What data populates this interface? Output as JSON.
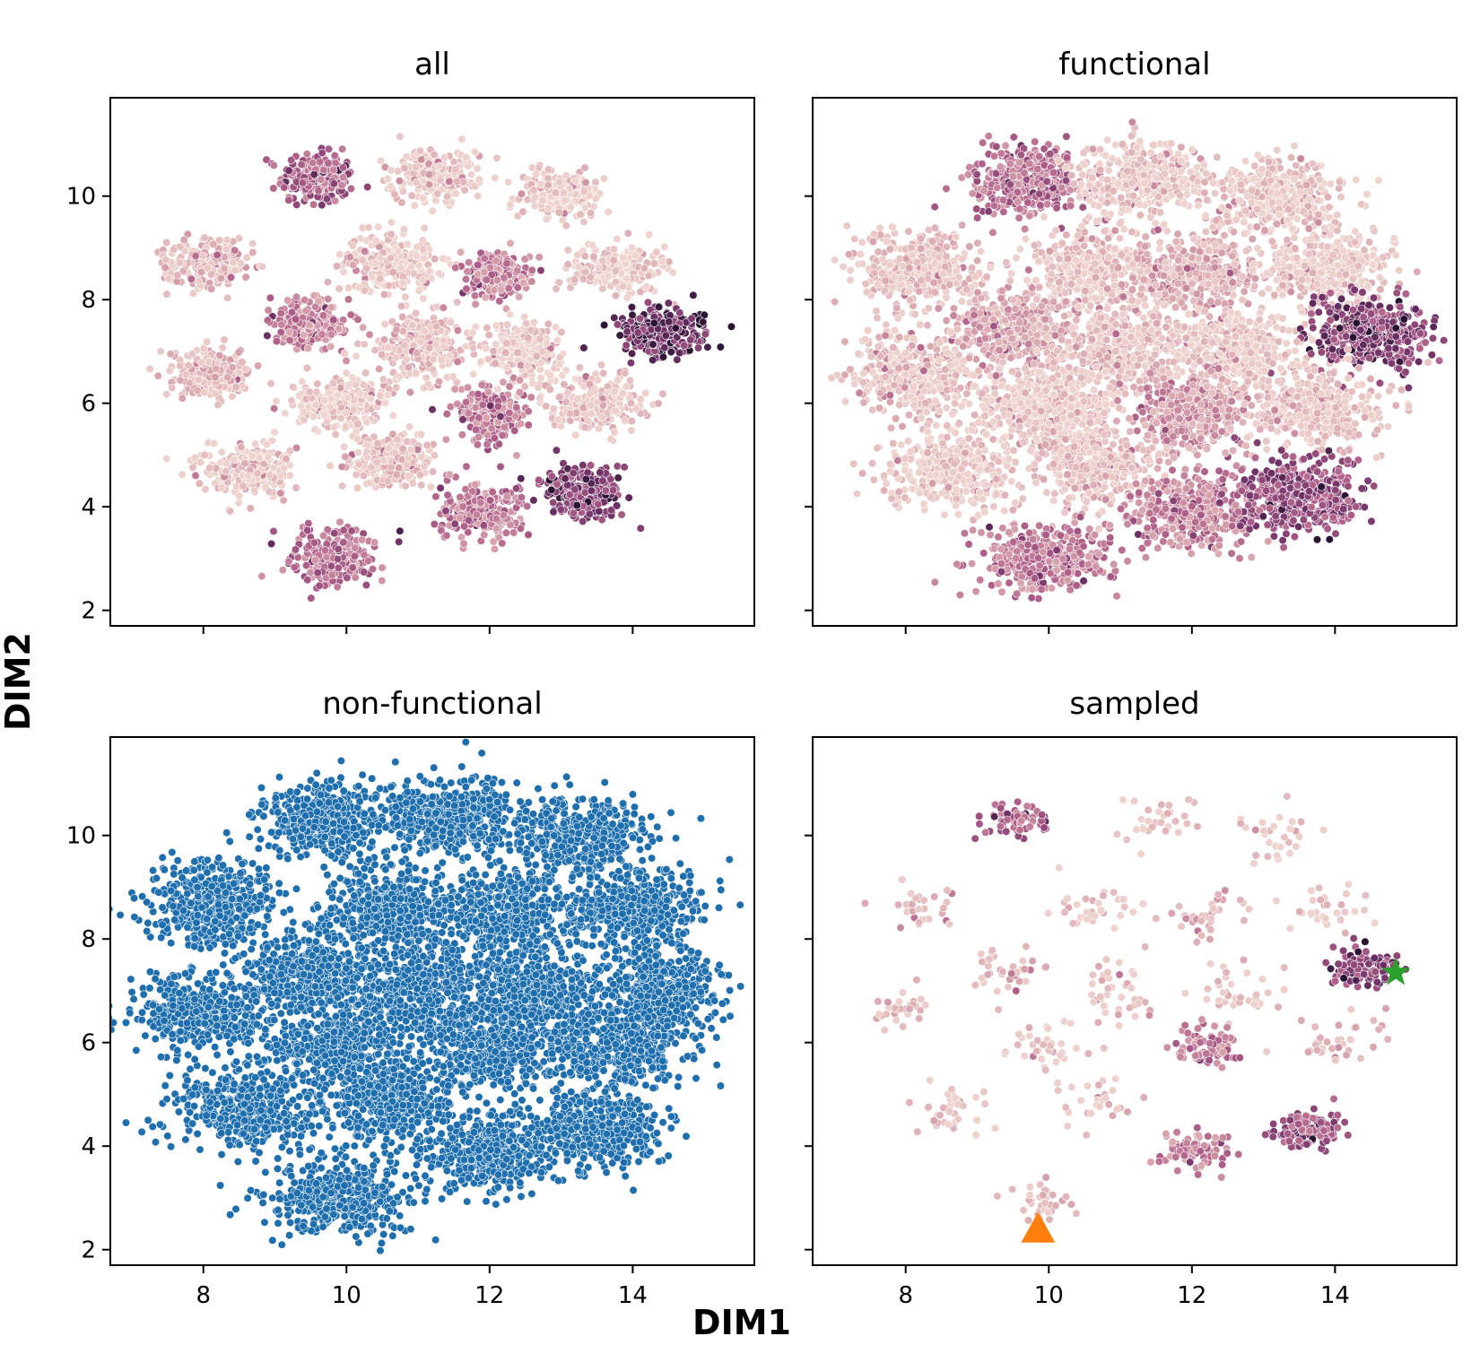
{
  "figure": {
    "xlabel": "DIM1",
    "ylabel": "DIM2"
  },
  "chart_data": [
    {
      "type": "scatter",
      "title": "all",
      "xlim": [
        6.7,
        15.7
      ],
      "ylim": [
        1.7,
        11.9
      ],
      "xticks": [
        8,
        10,
        12,
        14
      ],
      "yticks": [
        2,
        4,
        6,
        8,
        10
      ],
      "show_xtick_labels": false,
      "show_ytick_labels": true,
      "color_mode": "hue",
      "clusters": [
        {
          "x": 9.6,
          "y": 10.35,
          "rx": 0.5,
          "ry": 0.48,
          "n": 260,
          "hue": 0.55
        },
        {
          "x": 11.2,
          "y": 10.4,
          "rx": 0.6,
          "ry": 0.5,
          "n": 240,
          "hue": 0.05
        },
        {
          "x": 13.0,
          "y": 10.05,
          "rx": 0.58,
          "ry": 0.45,
          "n": 230,
          "hue": 0.05
        },
        {
          "x": 8.1,
          "y": 8.7,
          "rx": 0.6,
          "ry": 0.5,
          "n": 230,
          "hue": 0.15
        },
        {
          "x": 10.6,
          "y": 8.7,
          "rx": 0.65,
          "ry": 0.55,
          "n": 250,
          "hue": 0.04
        },
        {
          "x": 12.1,
          "y": 8.5,
          "rx": 0.5,
          "ry": 0.45,
          "n": 210,
          "hue": 0.4
        },
        {
          "x": 13.8,
          "y": 8.6,
          "rx": 0.65,
          "ry": 0.45,
          "n": 240,
          "hue": 0.04
        },
        {
          "x": 9.5,
          "y": 7.5,
          "rx": 0.55,
          "ry": 0.45,
          "n": 230,
          "hue": 0.4
        },
        {
          "x": 11.0,
          "y": 7.1,
          "rx": 0.6,
          "ry": 0.6,
          "n": 260,
          "hue": 0.12
        },
        {
          "x": 12.5,
          "y": 7.0,
          "rx": 0.6,
          "ry": 0.55,
          "n": 240,
          "hue": 0.04
        },
        {
          "x": 14.4,
          "y": 7.4,
          "rx": 0.6,
          "ry": 0.45,
          "n": 260,
          "hue": 0.82
        },
        {
          "x": 8.1,
          "y": 6.6,
          "rx": 0.55,
          "ry": 0.5,
          "n": 220,
          "hue": 0.15
        },
        {
          "x": 9.9,
          "y": 6.0,
          "rx": 0.65,
          "ry": 0.55,
          "n": 240,
          "hue": 0.04
        },
        {
          "x": 12.0,
          "y": 5.8,
          "rx": 0.5,
          "ry": 0.5,
          "n": 220,
          "hue": 0.45
        },
        {
          "x": 13.5,
          "y": 6.0,
          "rx": 0.65,
          "ry": 0.5,
          "n": 230,
          "hue": 0.08
        },
        {
          "x": 8.6,
          "y": 4.7,
          "rx": 0.65,
          "ry": 0.5,
          "n": 230,
          "hue": 0.05
        },
        {
          "x": 10.6,
          "y": 4.9,
          "rx": 0.6,
          "ry": 0.55,
          "n": 230,
          "hue": 0.1
        },
        {
          "x": 11.9,
          "y": 3.9,
          "rx": 0.6,
          "ry": 0.55,
          "n": 240,
          "hue": 0.45
        },
        {
          "x": 13.3,
          "y": 4.3,
          "rx": 0.6,
          "ry": 0.5,
          "n": 240,
          "hue": 0.72
        },
        {
          "x": 9.8,
          "y": 3.05,
          "rx": 0.6,
          "ry": 0.5,
          "n": 230,
          "hue": 0.5
        }
      ],
      "highlights": [
        {
          "x": 14.3,
          "y": 7.55,
          "hue": 1.0
        },
        {
          "x": 14.6,
          "y": 7.45,
          "hue": 1.0
        }
      ],
      "markers": []
    },
    {
      "type": "scatter",
      "title": "functional",
      "xlim": [
        6.7,
        15.7
      ],
      "ylim": [
        1.7,
        11.9
      ],
      "xticks": [
        8,
        10,
        12,
        14
      ],
      "yticks": [
        2,
        4,
        6,
        8,
        10
      ],
      "show_xtick_labels": false,
      "show_ytick_labels": false,
      "color_mode": "hue",
      "clusters": [
        {
          "x": 9.7,
          "y": 10.3,
          "rx": 0.8,
          "ry": 0.65,
          "n": 380,
          "hue": 0.5
        },
        {
          "x": 11.3,
          "y": 10.35,
          "rx": 0.9,
          "ry": 0.7,
          "n": 380,
          "hue": 0.05
        },
        {
          "x": 13.2,
          "y": 10.0,
          "rx": 0.9,
          "ry": 0.7,
          "n": 380,
          "hue": 0.05
        },
        {
          "x": 8.2,
          "y": 8.6,
          "rx": 0.85,
          "ry": 0.7,
          "n": 380,
          "hue": 0.1
        },
        {
          "x": 10.6,
          "y": 8.6,
          "rx": 0.95,
          "ry": 0.8,
          "n": 400,
          "hue": 0.05
        },
        {
          "x": 12.1,
          "y": 8.5,
          "rx": 0.85,
          "ry": 0.75,
          "n": 380,
          "hue": 0.2
        },
        {
          "x": 13.9,
          "y": 8.6,
          "rx": 0.9,
          "ry": 0.7,
          "n": 380,
          "hue": 0.05
        },
        {
          "x": 9.5,
          "y": 7.4,
          "rx": 0.8,
          "ry": 0.7,
          "n": 380,
          "hue": 0.25
        },
        {
          "x": 11.0,
          "y": 7.0,
          "rx": 0.95,
          "ry": 0.85,
          "n": 420,
          "hue": 0.1
        },
        {
          "x": 12.6,
          "y": 7.0,
          "rx": 0.9,
          "ry": 0.8,
          "n": 400,
          "hue": 0.05
        },
        {
          "x": 14.5,
          "y": 7.35,
          "rx": 0.8,
          "ry": 0.7,
          "n": 400,
          "hue": 0.7
        },
        {
          "x": 8.1,
          "y": 6.6,
          "rx": 0.85,
          "ry": 0.75,
          "n": 380,
          "hue": 0.1
        },
        {
          "x": 9.9,
          "y": 5.9,
          "rx": 0.95,
          "ry": 0.8,
          "n": 400,
          "hue": 0.05
        },
        {
          "x": 12.0,
          "y": 5.8,
          "rx": 0.8,
          "ry": 0.75,
          "n": 380,
          "hue": 0.3
        },
        {
          "x": 13.7,
          "y": 5.9,
          "rx": 0.95,
          "ry": 0.75,
          "n": 380,
          "hue": 0.08
        },
        {
          "x": 8.6,
          "y": 4.7,
          "rx": 0.95,
          "ry": 0.75,
          "n": 380,
          "hue": 0.05
        },
        {
          "x": 10.6,
          "y": 4.8,
          "rx": 0.9,
          "ry": 0.8,
          "n": 380,
          "hue": 0.1
        },
        {
          "x": 12.0,
          "y": 3.9,
          "rx": 0.85,
          "ry": 0.75,
          "n": 380,
          "hue": 0.4
        },
        {
          "x": 13.5,
          "y": 4.2,
          "rx": 0.85,
          "ry": 0.7,
          "n": 400,
          "hue": 0.65
        },
        {
          "x": 9.9,
          "y": 3.0,
          "rx": 0.9,
          "ry": 0.65,
          "n": 380,
          "hue": 0.45
        }
      ],
      "highlights": [
        {
          "x": 14.3,
          "y": 7.55,
          "hue": 1.0
        },
        {
          "x": 14.85,
          "y": 7.45,
          "hue": 1.0
        }
      ],
      "markers": []
    },
    {
      "type": "scatter",
      "title": "non-functional",
      "xlim": [
        6.7,
        15.7
      ],
      "ylim": [
        1.7,
        11.9
      ],
      "xticks": [
        8,
        10,
        12,
        14
      ],
      "yticks": [
        2,
        4,
        6,
        8,
        10
      ],
      "show_xtick_labels": true,
      "show_ytick_labels": true,
      "color_mode": "single",
      "point_color": "#1f6fae",
      "clusters": [
        {
          "x": 9.7,
          "y": 10.3,
          "rx": 0.85,
          "ry": 0.7,
          "n": 420
        },
        {
          "x": 11.4,
          "y": 10.4,
          "rx": 0.95,
          "ry": 0.75,
          "n": 420
        },
        {
          "x": 13.2,
          "y": 10.0,
          "rx": 0.95,
          "ry": 0.75,
          "n": 420
        },
        {
          "x": 8.1,
          "y": 8.7,
          "rx": 0.95,
          "ry": 0.8,
          "n": 430
        },
        {
          "x": 10.6,
          "y": 8.6,
          "rx": 1.0,
          "ry": 0.85,
          "n": 440
        },
        {
          "x": 12.2,
          "y": 8.5,
          "rx": 0.95,
          "ry": 0.8,
          "n": 430
        },
        {
          "x": 14.0,
          "y": 8.6,
          "rx": 0.95,
          "ry": 0.75,
          "n": 430
        },
        {
          "x": 9.5,
          "y": 7.4,
          "rx": 0.85,
          "ry": 0.75,
          "n": 420
        },
        {
          "x": 11.0,
          "y": 7.0,
          "rx": 1.0,
          "ry": 0.9,
          "n": 460
        },
        {
          "x": 12.6,
          "y": 7.0,
          "rx": 0.95,
          "ry": 0.85,
          "n": 440
        },
        {
          "x": 14.4,
          "y": 7.0,
          "rx": 0.85,
          "ry": 0.85,
          "n": 430
        },
        {
          "x": 8.0,
          "y": 6.6,
          "rx": 0.9,
          "ry": 0.8,
          "n": 420
        },
        {
          "x": 9.9,
          "y": 5.9,
          "rx": 1.0,
          "ry": 0.85,
          "n": 440
        },
        {
          "x": 12.0,
          "y": 5.8,
          "rx": 0.9,
          "ry": 0.8,
          "n": 420
        },
        {
          "x": 13.8,
          "y": 5.9,
          "rx": 1.0,
          "ry": 0.8,
          "n": 430
        },
        {
          "x": 8.6,
          "y": 4.7,
          "rx": 1.0,
          "ry": 0.8,
          "n": 420
        },
        {
          "x": 10.6,
          "y": 4.8,
          "rx": 0.95,
          "ry": 0.85,
          "n": 420
        },
        {
          "x": 12.0,
          "y": 3.9,
          "rx": 0.9,
          "ry": 0.75,
          "n": 420
        },
        {
          "x": 13.5,
          "y": 4.3,
          "rx": 0.9,
          "ry": 0.75,
          "n": 420
        },
        {
          "x": 9.9,
          "y": 3.0,
          "rx": 0.95,
          "ry": 0.7,
          "n": 420
        }
      ],
      "highlights": [],
      "markers": []
    },
    {
      "type": "scatter",
      "title": "sampled",
      "xlim": [
        6.7,
        15.7
      ],
      "ylim": [
        1.7,
        11.9
      ],
      "xticks": [
        8,
        10,
        12,
        14
      ],
      "yticks": [
        2,
        4,
        6,
        8,
        10
      ],
      "show_xtick_labels": true,
      "show_ytick_labels": false,
      "color_mode": "hue",
      "clusters": [
        {
          "x": 9.6,
          "y": 10.3,
          "rx": 0.45,
          "ry": 0.4,
          "n": 70,
          "hue": 0.55
        },
        {
          "x": 11.5,
          "y": 10.3,
          "rx": 0.6,
          "ry": 0.55,
          "n": 30,
          "hue": 0.05
        },
        {
          "x": 13.2,
          "y": 10.0,
          "rx": 0.6,
          "ry": 0.55,
          "n": 30,
          "hue": 0.05
        },
        {
          "x": 8.2,
          "y": 8.6,
          "rx": 0.5,
          "ry": 0.45,
          "n": 30,
          "hue": 0.15
        },
        {
          "x": 10.6,
          "y": 8.6,
          "rx": 0.6,
          "ry": 0.55,
          "n": 35,
          "hue": 0.05
        },
        {
          "x": 12.2,
          "y": 8.5,
          "rx": 0.6,
          "ry": 0.5,
          "n": 40,
          "hue": 0.2
        },
        {
          "x": 13.9,
          "y": 8.6,
          "rx": 0.6,
          "ry": 0.5,
          "n": 30,
          "hue": 0.05
        },
        {
          "x": 9.5,
          "y": 7.4,
          "rx": 0.5,
          "ry": 0.45,
          "n": 35,
          "hue": 0.15
        },
        {
          "x": 11.0,
          "y": 7.0,
          "rx": 0.6,
          "ry": 0.6,
          "n": 40,
          "hue": 0.08
        },
        {
          "x": 12.6,
          "y": 7.0,
          "rx": 0.65,
          "ry": 0.55,
          "n": 35,
          "hue": 0.06
        },
        {
          "x": 14.4,
          "y": 7.45,
          "rx": 0.5,
          "ry": 0.35,
          "n": 110,
          "hue": 0.72
        },
        {
          "x": 8.0,
          "y": 6.6,
          "rx": 0.45,
          "ry": 0.45,
          "n": 30,
          "hue": 0.1
        },
        {
          "x": 10.0,
          "y": 6.0,
          "rx": 0.6,
          "ry": 0.55,
          "n": 35,
          "hue": 0.05
        },
        {
          "x": 12.2,
          "y": 5.9,
          "rx": 0.45,
          "ry": 0.4,
          "n": 80,
          "hue": 0.45
        },
        {
          "x": 14.0,
          "y": 6.0,
          "rx": 0.6,
          "ry": 0.5,
          "n": 35,
          "hue": 0.12
        },
        {
          "x": 8.6,
          "y": 4.7,
          "rx": 0.6,
          "ry": 0.5,
          "n": 35,
          "hue": 0.05
        },
        {
          "x": 10.6,
          "y": 4.8,
          "rx": 0.5,
          "ry": 0.5,
          "n": 30,
          "hue": 0.08
        },
        {
          "x": 12.0,
          "y": 3.9,
          "rx": 0.45,
          "ry": 0.4,
          "n": 90,
          "hue": 0.4
        },
        {
          "x": 13.6,
          "y": 4.3,
          "rx": 0.5,
          "ry": 0.35,
          "n": 110,
          "hue": 0.6
        },
        {
          "x": 9.9,
          "y": 2.9,
          "rx": 0.45,
          "ry": 0.4,
          "n": 35,
          "hue": 0.12
        }
      ],
      "highlights": [],
      "markers": [
        {
          "shape": "star",
          "x": 14.85,
          "y": 7.35,
          "color": "#2ca02c"
        },
        {
          "shape": "triangle",
          "x": 9.85,
          "y": 2.4,
          "color": "#ff7f0e"
        }
      ]
    }
  ]
}
